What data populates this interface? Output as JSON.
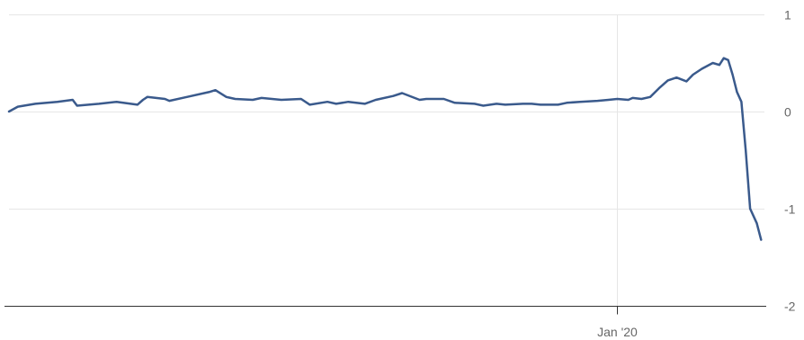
{
  "chart_data": {
    "type": "line",
    "title": "",
    "xlabel": "",
    "ylabel": "",
    "ylim": [
      -2,
      1
    ],
    "yticks": [
      1,
      0,
      -1,
      -2
    ],
    "ytick_labels": [
      "1",
      "0",
      "-1",
      "-2"
    ],
    "xlim": [
      "2018-06-26",
      "2020-05-14"
    ],
    "xticks": [
      {
        "value": "2020-01-01",
        "label": "Jan '20"
      }
    ],
    "grid": true,
    "legend": "none",
    "series": [
      {
        "color": "#3a5a8c",
        "x": [
          "2018-06-26",
          "2018-07-04",
          "2018-07-20",
          "2018-08-09",
          "2018-08-23",
          "2018-08-27",
          "2018-09-16",
          "2018-10-02",
          "2018-10-21",
          "2018-10-26",
          "2018-10-30",
          "2018-11-15",
          "2018-11-19",
          "2018-12-05",
          "2018-12-25",
          "2018-12-31",
          "2019-01-10",
          "2019-01-18",
          "2019-02-03",
          "2019-02-11",
          "2019-03-01",
          "2019-03-19",
          "2019-03-27",
          "2019-04-12",
          "2019-04-20",
          "2019-05-01",
          "2019-05-16",
          "2019-05-26",
          "2019-06-11",
          "2019-06-19",
          "2019-07-05",
          "2019-07-11",
          "2019-07-27",
          "2019-08-06",
          "2019-08-24",
          "2019-09-01",
          "2019-09-13",
          "2019-09-21",
          "2019-10-07",
          "2019-10-15",
          "2019-10-23",
          "2019-11-08",
          "2019-11-16",
          "2019-11-28",
          "2019-12-14",
          "2019-12-24",
          "2020-01-01",
          "2020-01-11",
          "2020-01-15",
          "2020-01-23",
          "2020-01-31",
          "2020-02-08",
          "2020-02-16",
          "2020-02-24",
          "2020-03-04",
          "2020-03-10",
          "2020-03-18",
          "2020-03-28",
          "2020-04-03",
          "2020-04-07",
          "2020-04-11",
          "2020-04-15",
          "2020-04-19",
          "2020-04-23",
          "2020-04-27",
          "2020-05-01",
          "2020-05-07",
          "2020-05-11"
        ],
        "y": [
          0.0,
          0.05,
          0.08,
          0.1,
          0.12,
          0.06,
          0.08,
          0.1,
          0.07,
          0.12,
          0.15,
          0.13,
          0.11,
          0.15,
          0.2,
          0.22,
          0.15,
          0.13,
          0.12,
          0.14,
          0.12,
          0.13,
          0.07,
          0.1,
          0.08,
          0.1,
          0.08,
          0.12,
          0.16,
          0.19,
          0.12,
          0.13,
          0.13,
          0.09,
          0.08,
          0.06,
          0.08,
          0.07,
          0.08,
          0.08,
          0.07,
          0.07,
          0.09,
          0.1,
          0.11,
          0.12,
          0.13,
          0.12,
          0.14,
          0.13,
          0.15,
          0.24,
          0.32,
          0.35,
          0.31,
          0.38,
          0.44,
          0.5,
          0.48,
          0.55,
          0.53,
          0.38,
          0.2,
          0.1,
          -0.4,
          -1.0,
          -1.15,
          -1.32
        ]
      }
    ]
  }
}
